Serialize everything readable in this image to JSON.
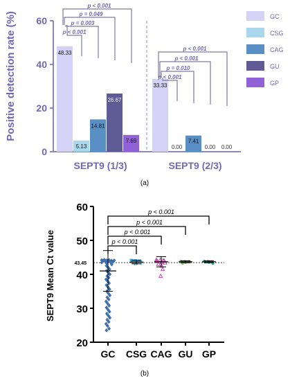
{
  "chart_data": [
    {
      "type": "bar",
      "panel_label": "(a)",
      "ylabel": "Positive detection rate (%)",
      "ylim": [
        0,
        60
      ],
      "yticks": [
        "0",
        "20",
        "40",
        "60"
      ],
      "groups": [
        "SEPT9 (1/3)",
        "SEPT9 (2/3)"
      ],
      "series": [
        {
          "name": "GC",
          "color": "#d4d3f5",
          "values": [
            48.33,
            33.33
          ],
          "labels": [
            "48.33",
            "33.33"
          ]
        },
        {
          "name": "CSG",
          "color": "#a9d8ee",
          "values": [
            5.13,
            0.0
          ],
          "labels": [
            "5.13",
            "0.00"
          ]
        },
        {
          "name": "CAG",
          "color": "#5a8fc6",
          "values": [
            14.81,
            7.41
          ],
          "labels": [
            "14.81",
            "7.41"
          ]
        },
        {
          "name": "GU",
          "color": "#5f5b94",
          "values": [
            26.67,
            0.0
          ],
          "labels": [
            "26.67",
            "0.00"
          ]
        },
        {
          "name": "GP",
          "color": "#8f62d6",
          "values": [
            7.69,
            0.0
          ],
          "labels": [
            "7.69",
            "0.00"
          ]
        }
      ],
      "annotations": [
        [
          "p < 0.001",
          "p = 0.049",
          "p = 0.003",
          "p < 0.001"
        ],
        [
          "p < 0.001",
          "p < 0.001",
          "p = 0.010",
          "p < 0.001"
        ]
      ],
      "legend_position": "right",
      "grid": false
    },
    {
      "type": "scatter",
      "panel_label": "(b)",
      "ylabel": "SEPT9 Mean Ct value",
      "ylim": [
        20,
        60
      ],
      "yticks": [
        "20",
        "30",
        "40",
        "50",
        "60"
      ],
      "categories": [
        "GC",
        "CSG",
        "CAG",
        "GU",
        "GP"
      ],
      "reference_line": {
        "value": 43.45,
        "label": "43.45"
      },
      "annotations": [
        "p < 0.001",
        "p < 0.001",
        "p < 0.001",
        "p < 0.001"
      ],
      "series": [
        {
          "name": "GC",
          "color": "#3f6fad",
          "marker": "diamond",
          "points": [
            44.2,
            44.1,
            44.0,
            43.9,
            43.8,
            43.7,
            44.3,
            44.2,
            44.1,
            43.9,
            43.6,
            43.5,
            43.2,
            42.9,
            42.5,
            42.0,
            41.5,
            41.0,
            40.5,
            40.0,
            39.5,
            39.0,
            38.5,
            38.0,
            37.4,
            36.8,
            36.2,
            35.6,
            35.0,
            34.4,
            33.8,
            33.2,
            32.6,
            32.0,
            31.4,
            30.8,
            30.2,
            29.6,
            29.0,
            28.4,
            27.8,
            27.2,
            26.6,
            26.0,
            25.4,
            24.8,
            24.0,
            23.5
          ],
          "mean": 41.0,
          "sd_low": 35.0,
          "sd_high": 47.0
        },
        {
          "name": "CSG",
          "color": "#4ea9d8",
          "marker": "triangle-down",
          "points": [
            44.1,
            44.0,
            43.9,
            43.8,
            43.7,
            43.6,
            43.5,
            43.4,
            43.3,
            43.2,
            43.6,
            43.8,
            44.0,
            43.9,
            43.5,
            43.2
          ],
          "mean": 43.6,
          "sd_low": 43.1,
          "sd_high": 44.1
        },
        {
          "name": "CAG",
          "color": "#c23aa8",
          "marker": "triangle",
          "points": [
            44.3,
            44.2,
            44.0,
            43.8,
            43.6,
            43.4,
            43.0,
            42.5,
            41.5,
            39.5,
            44.1,
            43.9
          ],
          "mean": 43.7,
          "sd_low": 42.2,
          "sd_high": 45.2
        },
        {
          "name": "GU",
          "color": "#6aa84f",
          "marker": "circle",
          "points": [
            43.9,
            43.8,
            43.7,
            43.6,
            43.5,
            43.8,
            43.2
          ],
          "mean": 43.7,
          "sd_low": 43.4,
          "sd_high": 44.0
        },
        {
          "name": "GP",
          "color": "#2aa6a0",
          "marker": "circle",
          "points": [
            43.9,
            43.8,
            43.7,
            43.6,
            43.5,
            43.2
          ],
          "mean": 43.7,
          "sd_low": 43.4,
          "sd_high": 44.0
        }
      ]
    }
  ]
}
